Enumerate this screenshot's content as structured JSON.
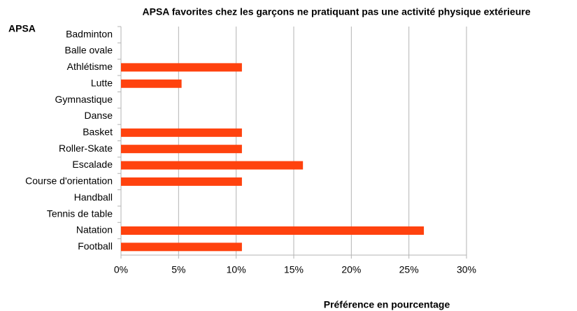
{
  "chart_data": {
    "type": "barh",
    "title": "APSA favorites chez les garçons ne pratiquant pas une activité physique extérieure",
    "y_label": "APSA",
    "x_label": "Préférence en pourcentage",
    "categories": [
      "Badminton",
      "Balle ovale",
      "Athlétisme",
      "Lutte",
      "Gymnastique",
      "Danse",
      "Basket",
      "Roller-Skate",
      "Escalade",
      "Course d'orientation",
      "Handball",
      "Tennis de table",
      "Natation",
      "Football"
    ],
    "values": [
      0,
      0,
      10.5,
      5.26,
      0,
      0,
      10.5,
      10.5,
      15.8,
      10.5,
      0,
      0,
      26.3,
      10.5
    ],
    "color": "#ff420e",
    "xlim": [
      0,
      30
    ],
    "xticks": [
      {
        "value": 0,
        "label": "0%"
      },
      {
        "value": 5,
        "label": "5%"
      },
      {
        "value": 10,
        "label": "10%"
      },
      {
        "value": 15,
        "label": "15%"
      },
      {
        "value": 20,
        "label": "20%"
      },
      {
        "value": 25,
        "label": "25%"
      },
      {
        "value": 30,
        "label": "30%"
      }
    ],
    "grid": true
  }
}
